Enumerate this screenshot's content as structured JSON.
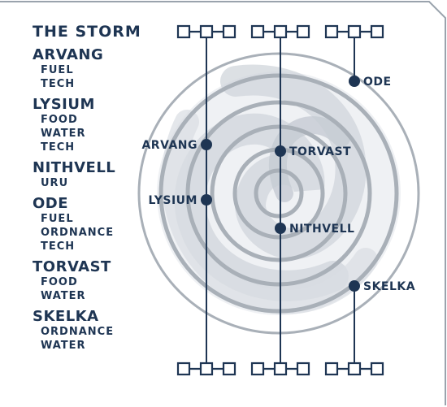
{
  "legend": {
    "title": "THE STORM",
    "groups": [
      {
        "name": "ARVANG",
        "resources": [
          "FUEL",
          "TECH"
        ]
      },
      {
        "name": "LYSIUM",
        "resources": [
          "FOOD",
          "WATER",
          "TECH"
        ]
      },
      {
        "name": "NITHVELL",
        "resources": [
          "URU"
        ]
      },
      {
        "name": "ODE",
        "resources": [
          "FUEL",
          "ORDNANCE",
          "TECH"
        ]
      },
      {
        "name": "TORVAST",
        "resources": [
          "FOOD",
          "WATER"
        ]
      },
      {
        "name": "SKELKA",
        "resources": [
          "ORDNANCE",
          "WATER"
        ]
      }
    ]
  },
  "map": {
    "nodes": [
      {
        "name": "ARVANG",
        "side": "left"
      },
      {
        "name": "TORVAST",
        "side": "right"
      },
      {
        "name": "ODE",
        "side": "right"
      },
      {
        "name": "LYSIUM",
        "side": "left"
      },
      {
        "name": "NITHVELL",
        "side": "right"
      },
      {
        "name": "SKELKA",
        "side": "right"
      }
    ]
  },
  "colors": {
    "ink": "#1e3553",
    "frame": "#9aa3ad",
    "rings": "#a9b0b8",
    "storm": "#cfd4da"
  }
}
